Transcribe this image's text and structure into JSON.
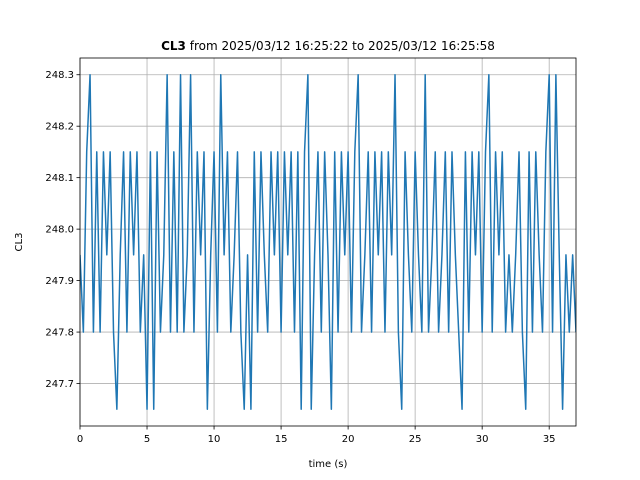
{
  "chart_data": {
    "type": "line",
    "title_bold": "CL3",
    "title": "from 2025/03/12 16:25:22 to 2025/03/12 16:25:58",
    "xlabel": "time (s)",
    "ylabel": "CL3",
    "xlim": [
      0,
      37
    ],
    "ylim": [
      247.6175,
      248.3325
    ],
    "xticks": [
      0,
      5,
      10,
      15,
      20,
      25,
      30,
      35
    ],
    "yticks": [
      247.7,
      247.8,
      247.9,
      {
        "value": 248,
        "label": "248.0"
      },
      248.1,
      248.2,
      248.3
    ],
    "grid": true,
    "x": [
      0,
      0.25,
      0.5,
      0.75,
      1,
      1.25,
      1.5,
      1.75,
      2,
      2.25,
      2.5,
      2.75,
      3,
      3.25,
      3.5,
      3.75,
      4,
      4.25,
      4.5,
      4.75,
      5,
      5.25,
      5.5,
      5.75,
      6,
      6.25,
      6.5,
      6.75,
      7,
      7.25,
      7.5,
      7.75,
      8,
      8.25,
      8.5,
      8.75,
      9,
      9.25,
      9.5,
      9.75,
      10,
      10.25,
      10.5,
      10.75,
      11,
      11.25,
      11.5,
      11.75,
      12,
      12.25,
      12.5,
      12.75,
      13,
      13.25,
      13.5,
      13.75,
      14,
      14.25,
      14.5,
      14.75,
      15,
      15.25,
      15.5,
      15.75,
      16,
      16.25,
      16.5,
      16.75,
      17,
      17.25,
      17.5,
      17.75,
      18,
      18.25,
      18.5,
      18.75,
      19,
      19.25,
      19.5,
      19.75,
      20,
      20.25,
      20.5,
      20.75,
      21,
      21.25,
      21.5,
      21.75,
      22,
      22.25,
      22.5,
      22.75,
      23,
      23.25,
      23.5,
      23.75,
      24,
      24.25,
      24.5,
      24.75,
      25,
      25.25,
      25.5,
      25.75,
      26,
      26.25,
      26.5,
      26.75,
      27,
      27.25,
      27.5,
      27.75,
      28,
      28.25,
      28.5,
      28.75,
      29,
      29.25,
      29.5,
      29.75,
      30,
      30.25,
      30.5,
      30.75,
      31,
      31.25,
      31.5,
      31.75,
      32,
      32.25,
      32.5,
      32.75,
      33,
      33.25,
      33.5,
      33.75,
      34,
      34.25,
      34.5,
      34.75,
      35,
      35.25,
      35.5,
      35.75,
      36,
      36.25,
      36.5,
      36.75,
      37
    ],
    "series": [
      {
        "name": "CL3",
        "color": "#1f77b4",
        "values": [
          247.95,
          247.8,
          248.15,
          248.3,
          247.8,
          248.15,
          247.8,
          248.15,
          247.95,
          248.15,
          247.8,
          247.65,
          247.95,
          248.15,
          247.8,
          248.15,
          247.95,
          248.15,
          247.8,
          247.95,
          247.65,
          248.15,
          247.65,
          248.15,
          247.8,
          247.95,
          248.3,
          247.8,
          248.15,
          247.8,
          248.3,
          247.8,
          247.95,
          248.3,
          247.8,
          248.15,
          247.95,
          248.15,
          247.65,
          247.95,
          248.15,
          247.8,
          248.3,
          247.95,
          248.15,
          247.8,
          247.95,
          248.15,
          247.8,
          247.65,
          247.95,
          247.65,
          248.15,
          247.8,
          248.15,
          247.95,
          247.8,
          248.15,
          247.95,
          248.15,
          247.8,
          248.15,
          247.95,
          248.15,
          247.8,
          248.15,
          247.65,
          248.15,
          248.3,
          247.65,
          247.95,
          248.15,
          247.8,
          248.15,
          247.95,
          247.65,
          248.15,
          247.8,
          248.15,
          247.95,
          248.15,
          247.8,
          248.15,
          248.3,
          247.8,
          247.95,
          248.15,
          247.8,
          248.15,
          247.95,
          248.15,
          247.8,
          248.15,
          247.95,
          248.3,
          247.8,
          247.65,
          248.15,
          247.95,
          247.8,
          248.15,
          247.95,
          247.8,
          248.3,
          247.8,
          247.95,
          248.15,
          247.8,
          247.95,
          248.15,
          247.8,
          248.15,
          247.95,
          247.8,
          247.65,
          248.15,
          247.8,
          248.15,
          247.95,
          248.15,
          247.8,
          248.15,
          248.3,
          247.8,
          248.15,
          247.95,
          248.15,
          247.8,
          247.95,
          247.8,
          247.95,
          248.15,
          247.8,
          247.65,
          248.15,
          247.8,
          248.15,
          247.95,
          247.8,
          248.15,
          248.3,
          247.8,
          248.3,
          247.95,
          247.65,
          247.95,
          247.8,
          247.95,
          247.8
        ]
      }
    ]
  }
}
